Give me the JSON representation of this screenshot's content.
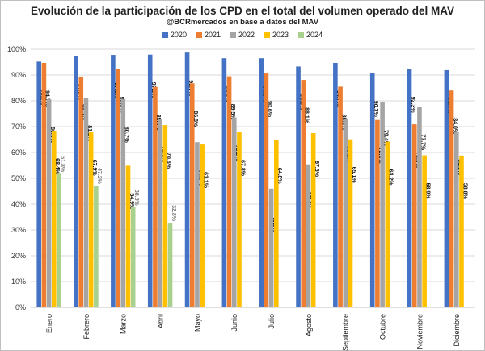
{
  "chart_data": {
    "type": "bar",
    "title": "Evolución de la participación de los CPD en el total del volumen operado del MAV",
    "subtitle": "@BCRmercados en base a datos del MAV",
    "categories": [
      "Enero",
      "Febrero",
      "Marzo",
      "Abril",
      "Mayo",
      "Junio",
      "Julio",
      "Agosto",
      "Septiembre",
      "Octubre",
      "Noviembre",
      "Diciembre"
    ],
    "ylim": [
      0,
      100
    ],
    "yticks": [
      "0%",
      "10%",
      "20%",
      "30%",
      "40%",
      "50%",
      "60%",
      "70%",
      "80%",
      "90%",
      "100%"
    ],
    "grid": true,
    "legend_position": "top-center",
    "series": [
      {
        "name": "2020",
        "color": "#4472c4",
        "values": [
          95.2,
          97.2,
          97.8,
          97.9,
          98.7,
          96.5,
          96.5,
          93.3,
          94.7,
          90.7,
          92.3,
          91.9
        ],
        "labels": [
          "95.2%",
          "97.2%",
          "97.8%",
          "97.9%",
          "98.7%",
          "96.5%",
          "96.5%",
          "93.3%",
          "94.7%",
          "90.7%",
          "92.3%",
          "91.9%"
        ]
      },
      {
        "name": "2021",
        "color": "#ed7d31",
        "values": [
          94.7,
          89.4,
          92.3,
          85.4,
          86.8,
          89.5,
          90.6,
          88.1,
          85.5,
          72.6,
          70.9,
          84.0
        ],
        "labels": [
          "94.7%",
          "89.4%",
          "92.3%",
          "85.4%",
          "86.8%",
          "89.5%",
          "90.6%",
          "88.1%",
          "85.5%",
          "72.6%",
          "70.9%",
          "84.0%"
        ]
      },
      {
        "name": "2022",
        "color": "#a5a5a5",
        "values": [
          80.6,
          81.2,
          80.7,
          73.1,
          64.0,
          73.6,
          46.0,
          55.4,
          73.1,
          79.4,
          77.7,
          68.1
        ],
        "labels": [
          "80.6%",
          "81.2%",
          "80.7%",
          "73.1%",
          "64.0%",
          "73.6%",
          "46.0%",
          "55.4%",
          "73.1%",
          "79.4%",
          "77.7%",
          "68.1%"
        ]
      },
      {
        "name": "2023",
        "color": "#ffc000",
        "values": [
          68.4,
          67.9,
          54.9,
          70.6,
          63.1,
          67.8,
          64.8,
          67.5,
          65.1,
          64.2,
          58.9,
          58.8
        ],
        "labels": [
          "68.4%",
          "67.9%",
          "54.9%",
          "70.6%",
          "63.1%",
          "67.8%",
          "64.8%",
          "67.5%",
          "65.1%",
          "64.2%",
          "58.9%",
          "58.8%"
        ]
      },
      {
        "name": "2024",
        "color": "#a9d18e",
        "values": [
          51.8,
          47.2,
          38.8,
          32.8,
          null,
          null,
          null,
          null,
          null,
          null,
          null,
          null
        ],
        "labels": [
          "51.8%",
          "47.2%",
          "38.8%",
          "32.8%",
          "",
          "",
          "",
          "",
          "",
          "",
          "",
          ""
        ]
      }
    ]
  }
}
